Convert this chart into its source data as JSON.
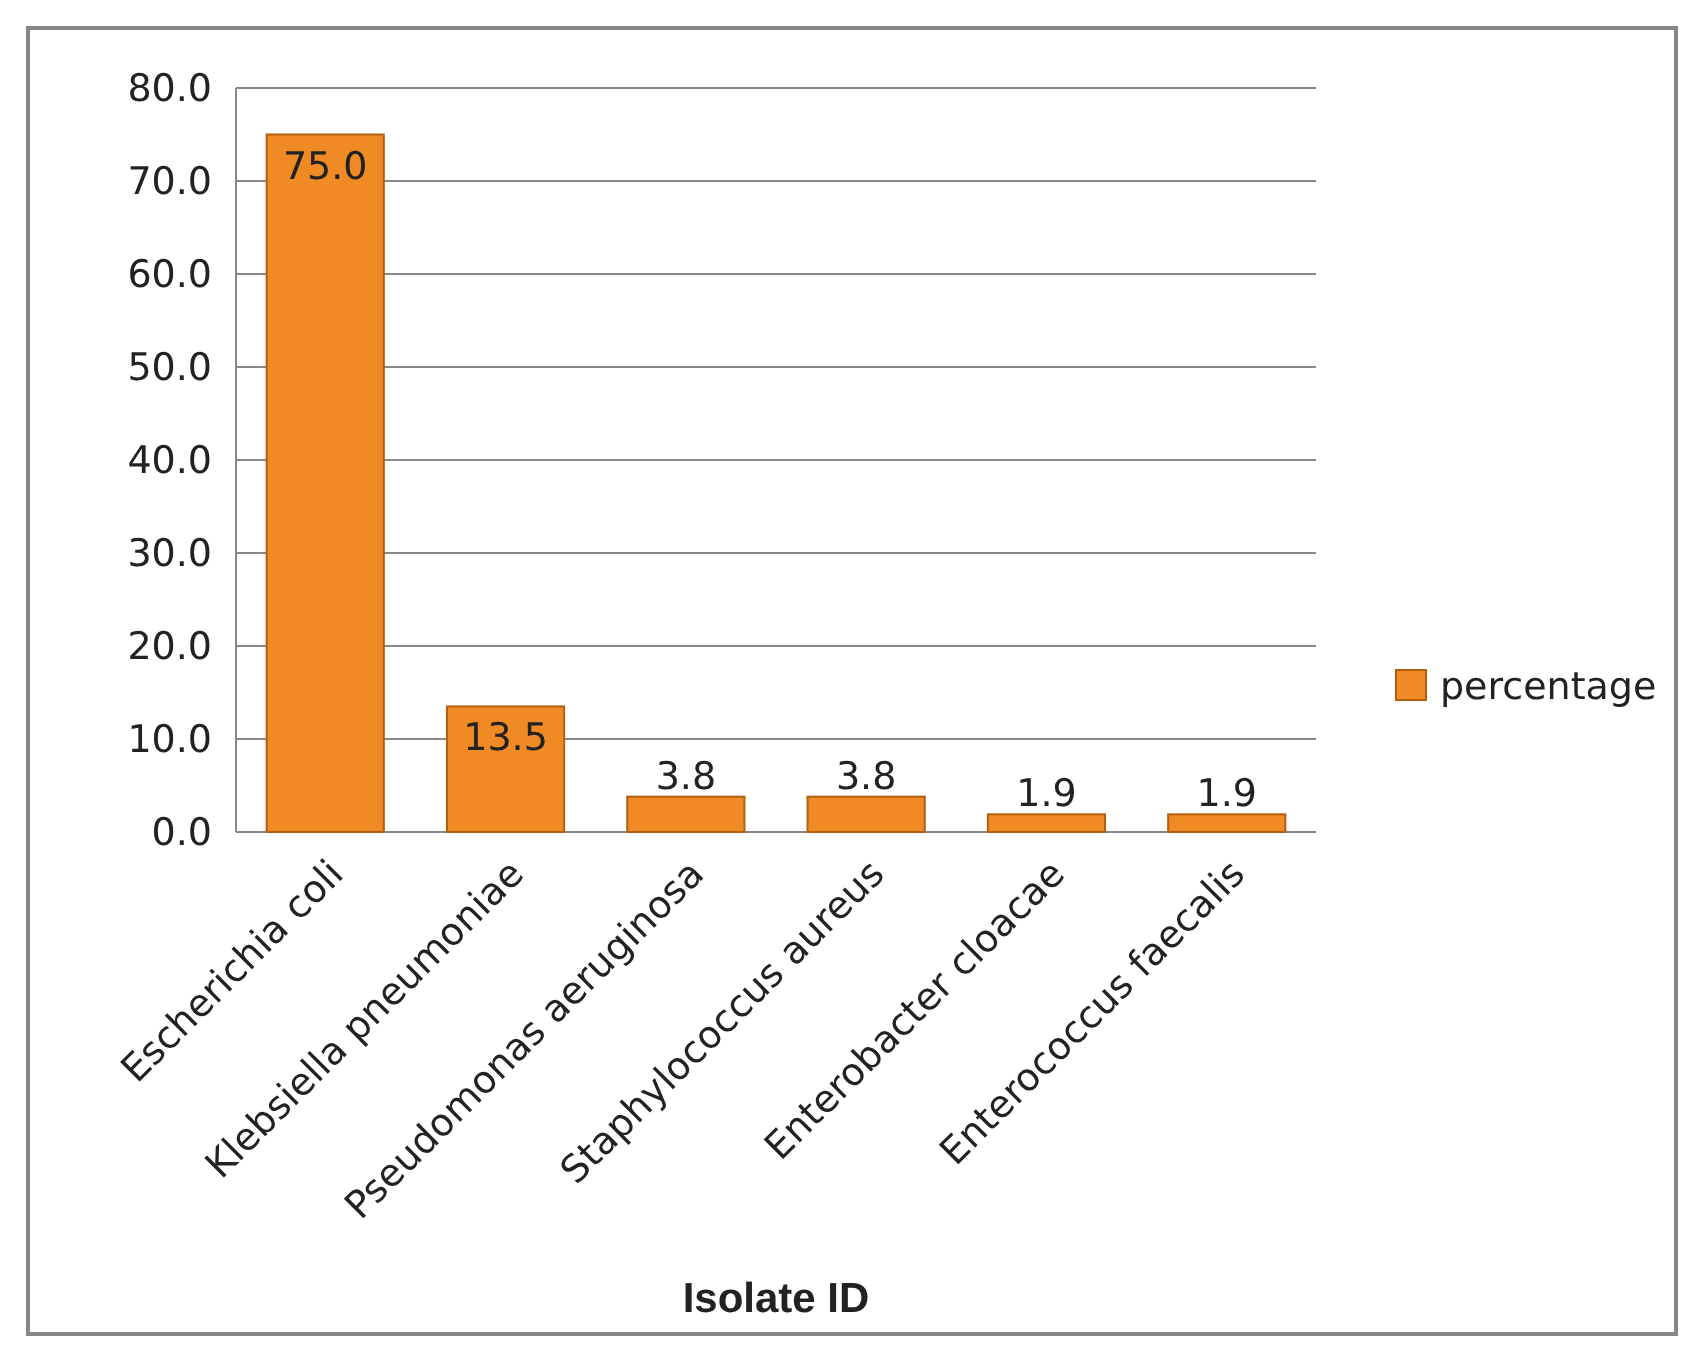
{
  "chart_data": {
    "type": "bar",
    "xlabel": "Isolate ID",
    "categories": [
      "Escherichia coli",
      "Klebsiella pneumoniae",
      "Pseudomonas aeruginosa",
      "Staphylococcus aureus",
      "Enterobacter cloacae",
      "Enterococcus faecalis"
    ],
    "series": [
      {
        "name": "percentage",
        "color": "#f08a24",
        "values": [
          75.0,
          13.5,
          3.8,
          3.8,
          1.9,
          1.9
        ],
        "value_labels": [
          "75.0",
          "13.5",
          "3.8",
          "3.8",
          "1.9",
          "1.9"
        ]
      }
    ],
    "ylim": [
      0,
      80
    ],
    "yticks": [
      {
        "value": 0,
        "label": "0.0"
      },
      {
        "value": 10,
        "label": "10.0"
      },
      {
        "value": 20,
        "label": "20.0"
      },
      {
        "value": 30,
        "label": "30.0"
      },
      {
        "value": 40,
        "label": "40.0"
      },
      {
        "value": 50,
        "label": "50.0"
      },
      {
        "value": 60,
        "label": "60.0"
      },
      {
        "value": 70,
        "label": "70.0"
      },
      {
        "value": 80,
        "label": "80.0"
      }
    ],
    "grid": "y",
    "legend": "right"
  }
}
